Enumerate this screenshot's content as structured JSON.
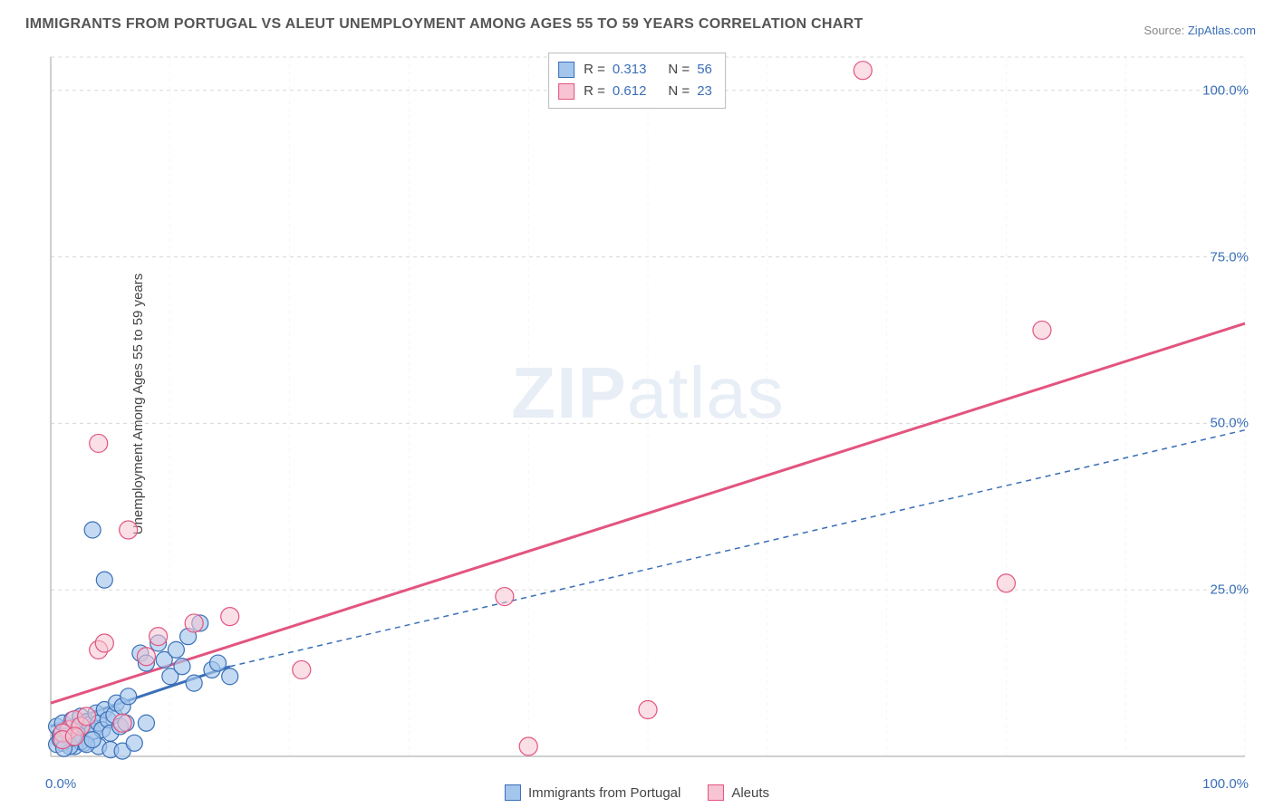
{
  "title": "IMMIGRANTS FROM PORTUGAL VS ALEUT UNEMPLOYMENT AMONG AGES 55 TO 59 YEARS CORRELATION CHART",
  "source_label": "Source:",
  "source_name": "ZipAtlas.com",
  "ylabel": "Unemployment Among Ages 55 to 59 years",
  "watermark_bold": "ZIP",
  "watermark_rest": "atlas",
  "legend_top": {
    "series": [
      {
        "r_label": "R =",
        "r_value": "0.313",
        "n_label": "N =",
        "n_value": "56",
        "fill": "#a4c6ec",
        "stroke": "#3a6fb7"
      },
      {
        "r_label": "R =",
        "r_value": "0.612",
        "n_label": "N =",
        "n_value": "23",
        "fill": "#f6c4d2",
        "stroke": "#e3547f"
      }
    ]
  },
  "legend_bottom": {
    "items": [
      {
        "label": "Immigrants from Portugal",
        "fill": "#a4c6ec",
        "stroke": "#3a6fb7"
      },
      {
        "label": "Aleuts",
        "fill": "#f6c4d2",
        "stroke": "#e3547f"
      }
    ]
  },
  "axes": {
    "x_tick_0": "0.0%",
    "x_tick_100": "100.0%",
    "y_ticks": [
      {
        "value": 25,
        "label": "25.0%"
      },
      {
        "value": 50,
        "label": "50.0%"
      },
      {
        "value": 75,
        "label": "75.0%"
      },
      {
        "value": 100,
        "label": "100.0%"
      }
    ]
  },
  "chart": {
    "type": "scatter",
    "xlim": [
      0,
      100
    ],
    "ylim": [
      0,
      105
    ],
    "grid_color": "#d8d8d8",
    "grid_dash": "4 4",
    "axis_color": "#bfbfbf",
    "background": "#ffffff",
    "series": [
      {
        "name": "Immigrants from Portugal",
        "marker_fill": "#a4c6ec",
        "marker_stroke": "#3a6fb7",
        "marker_opacity": 0.65,
        "marker_radius": 9,
        "points": [
          [
            0.5,
            4.5
          ],
          [
            0.8,
            3.2
          ],
          [
            1.0,
            5.0
          ],
          [
            1.2,
            2.5
          ],
          [
            1.5,
            4.0
          ],
          [
            1.8,
            5.5
          ],
          [
            2.0,
            3.0
          ],
          [
            2.3,
            4.2
          ],
          [
            2.5,
            6.0
          ],
          [
            2.8,
            2.0
          ],
          [
            3.0,
            5.2
          ],
          [
            3.3,
            4.8
          ],
          [
            3.5,
            3.8
          ],
          [
            3.8,
            6.5
          ],
          [
            4.0,
            5.0
          ],
          [
            4.3,
            4.0
          ],
          [
            4.5,
            7.0
          ],
          [
            4.8,
            5.5
          ],
          [
            5.0,
            3.5
          ],
          [
            5.3,
            6.2
          ],
          [
            5.5,
            8.0
          ],
          [
            5.8,
            4.5
          ],
          [
            6.0,
            7.5
          ],
          [
            6.3,
            5.0
          ],
          [
            6.5,
            9.0
          ],
          [
            3.5,
            34.0
          ],
          [
            4.5,
            26.5
          ],
          [
            7.5,
            15.5
          ],
          [
            8.0,
            14.0
          ],
          [
            9.0,
            17.0
          ],
          [
            9.5,
            14.5
          ],
          [
            10.0,
            12.0
          ],
          [
            10.5,
            16.0
          ],
          [
            11.0,
            13.5
          ],
          [
            11.5,
            18.0
          ],
          [
            12.0,
            11.0
          ],
          [
            12.5,
            20.0
          ],
          [
            13.5,
            13.0
          ],
          [
            14.0,
            14.0
          ],
          [
            15.0,
            12.0
          ],
          [
            4.0,
            1.5
          ],
          [
            5.0,
            1.0
          ],
          [
            6.0,
            0.8
          ],
          [
            7.0,
            2.0
          ],
          [
            8.0,
            5.0
          ],
          [
            2.0,
            1.5
          ],
          [
            2.5,
            2.2
          ],
          [
            3.0,
            1.8
          ],
          [
            3.5,
            2.5
          ],
          [
            1.0,
            2.0
          ],
          [
            1.3,
            3.0
          ],
          [
            1.6,
            1.5
          ],
          [
            1.9,
            2.8
          ],
          [
            0.5,
            1.8
          ],
          [
            0.8,
            2.5
          ],
          [
            1.1,
            1.2
          ]
        ],
        "trend": {
          "x1": 0,
          "y1": 4.5,
          "x2": 15,
          "y2": 13.5,
          "solid_until_x": 15,
          "dash_to": [
            100,
            49
          ],
          "color": "#3a6fb7",
          "width": 2,
          "dash": "6 5"
        }
      },
      {
        "name": "Aleuts",
        "marker_fill": "#f6c4d2",
        "marker_stroke": "#e3547f",
        "marker_opacity": 0.55,
        "marker_radius": 10,
        "points": [
          [
            1.5,
            4.0
          ],
          [
            2.0,
            5.5
          ],
          [
            2.5,
            4.5
          ],
          [
            3.0,
            6.0
          ],
          [
            4.0,
            16.0
          ],
          [
            4.5,
            17.0
          ],
          [
            6.0,
            5.0
          ],
          [
            8.0,
            15.0
          ],
          [
            9.0,
            18.0
          ],
          [
            12.0,
            20.0
          ],
          [
            15.0,
            21.0
          ],
          [
            21.0,
            13.0
          ],
          [
            4.0,
            47.0
          ],
          [
            6.5,
            34.0
          ],
          [
            38.0,
            24.0
          ],
          [
            40.0,
            1.5
          ],
          [
            50.0,
            7.0
          ],
          [
            68.0,
            103.0
          ],
          [
            80.0,
            26.0
          ],
          [
            83.0,
            64.0
          ],
          [
            1.0,
            3.5
          ],
          [
            1.0,
            2.5
          ],
          [
            2.0,
            3.0
          ]
        ],
        "trend": {
          "x1": 0,
          "y1": 8.0,
          "x2": 100,
          "y2": 65.0,
          "color": "#e3547f",
          "width": 3
        }
      }
    ]
  }
}
